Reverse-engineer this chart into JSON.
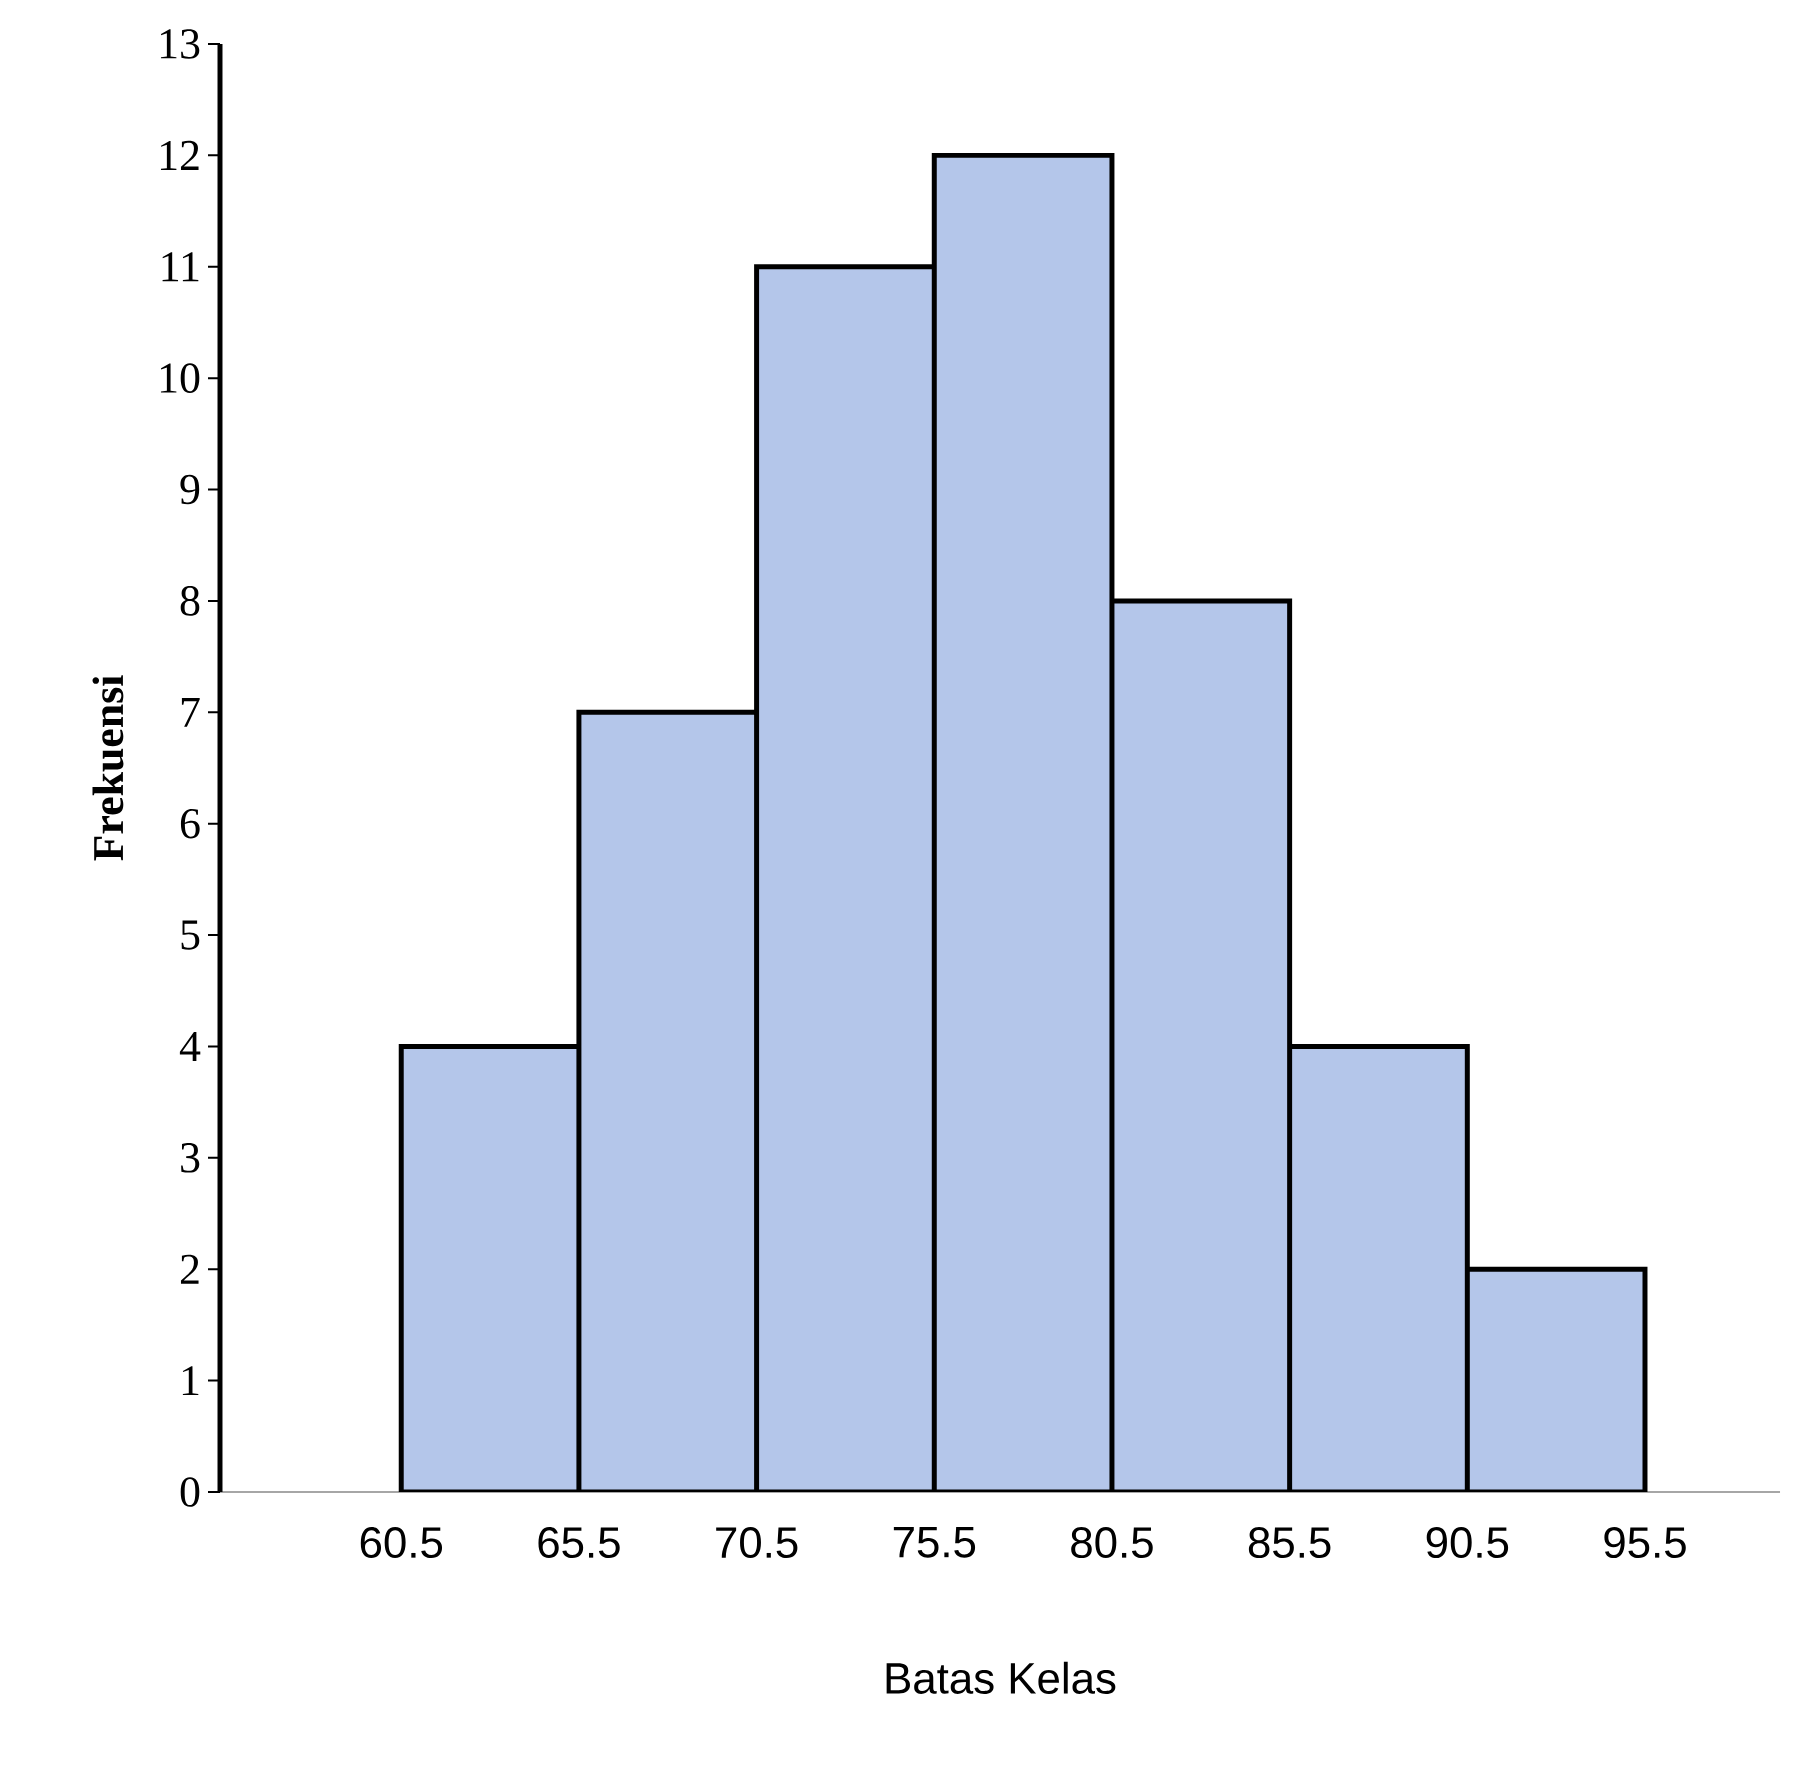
{
  "chart_data": {
    "type": "histogram",
    "xlabel": "Batas Kelas",
    "ylabel": "Frekuensi",
    "bins": [
      60.5,
      65.5,
      70.5,
      75.5,
      80.5,
      85.5,
      90.5,
      95.5
    ],
    "values": [
      4,
      7,
      11,
      12,
      8,
      4,
      2
    ],
    "color": "#b4c6ea",
    "xlim": [
      55.4,
      99.3
    ],
    "ylim": [
      0,
      13
    ],
    "xticks": [
      60.5,
      65.5,
      70.5,
      75.5,
      80.5,
      85.5,
      90.5,
      95.5
    ],
    "yticks": [
      0,
      1,
      2,
      3,
      4,
      5,
      6,
      7,
      8,
      9,
      10,
      11,
      12,
      13
    ],
    "grid": false
  }
}
